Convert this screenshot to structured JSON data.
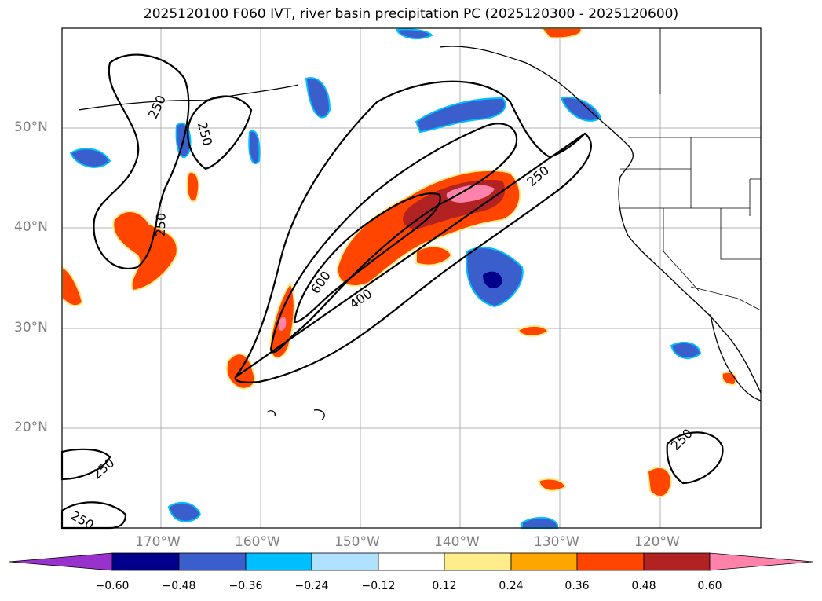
{
  "title": "2025120100 F060 IVT, river basin precipitation PC (2025120300 - 2025120600)",
  "map": {
    "lon_range": [
      -180,
      -110
    ],
    "lat_range": [
      10,
      60
    ],
    "gridlines": true,
    "lat_ticks": [
      {
        "value": 50,
        "label": "50°N"
      },
      {
        "value": 40,
        "label": "40°N"
      },
      {
        "value": 30,
        "label": "30°N"
      },
      {
        "value": 20,
        "label": "20°N"
      }
    ],
    "lon_ticks": [
      {
        "value": -170,
        "label": "170°W"
      },
      {
        "value": -160,
        "label": "160°W"
      },
      {
        "value": -150,
        "label": "150°W"
      },
      {
        "value": -140,
        "label": "140°W"
      },
      {
        "value": -130,
        "label": "130°W"
      },
      {
        "value": -120,
        "label": "120°W"
      }
    ],
    "contour_labels": [
      "250",
      "250",
      "250",
      "250",
      "600",
      "400",
      "250",
      "250",
      "250"
    ]
  },
  "colorbar": {
    "ticks": [
      "−0.60",
      "−0.48",
      "−0.36",
      "−0.24",
      "−0.12",
      "0.12",
      "0.24",
      "0.36",
      "0.48",
      "0.60"
    ],
    "colors": [
      "#9932cc",
      "#00008b",
      "#3a5fcd",
      "#00bfff",
      "#b0e2ff",
      "#ffffff",
      "#ffec8b",
      "#ffa500",
      "#ff4500",
      "#b22222",
      "#ff82ab"
    ]
  }
}
